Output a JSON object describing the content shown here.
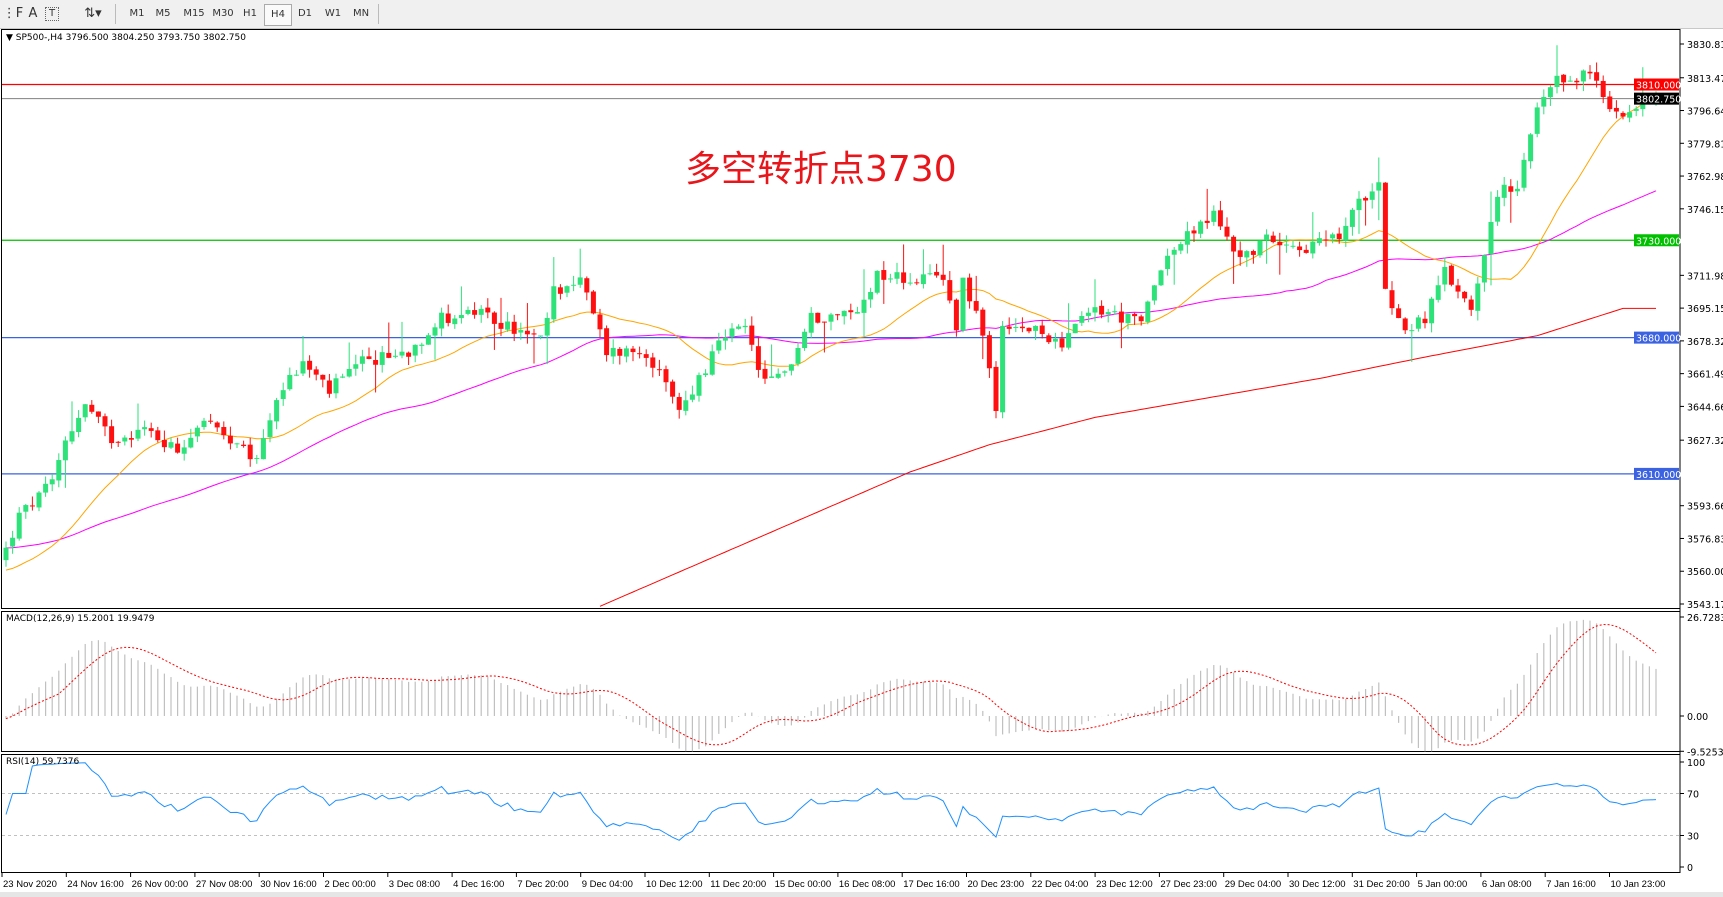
{
  "toolbar": {
    "tools": [
      {
        "name": "fibonacci-icon",
        "glyph": "⋮F"
      },
      {
        "name": "text-icon",
        "glyph": "A"
      },
      {
        "name": "text-label-icon",
        "glyph": "T"
      },
      {
        "name": "arrows-icon",
        "glyph": "⇅▾"
      }
    ],
    "timeframes": [
      "M1",
      "M5",
      "M15",
      "M30",
      "H1",
      "H4",
      "D1",
      "W1",
      "MN"
    ],
    "selected_timeframe": "H4"
  },
  "main_chart": {
    "header": "SP500-,H4  3796.500 3804.250 3793.750 3802.750",
    "annotation": "多空转折点3730",
    "price_axis": [
      "3830.810",
      "3813.470",
      "3796.640",
      "3779.810",
      "3762.980",
      "3746.150",
      "3711.980",
      "3695.150",
      "3678.320",
      "3661.490",
      "3644.660",
      "3627.320",
      "3593.660",
      "3576.830",
      "3560.000",
      "3543.170"
    ],
    "price_axis_values": [
      3830.81,
      3813.47,
      3796.64,
      3779.81,
      3762.98,
      3746.15,
      3711.98,
      3695.15,
      3678.32,
      3661.49,
      3644.66,
      3627.32,
      3593.66,
      3576.83,
      3560.0,
      3543.17
    ],
    "price_range": [
      3543.17,
      3830.81
    ],
    "levels": [
      {
        "label": "3810.000",
        "value": 3810.0,
        "color": "#ff0000"
      },
      {
        "label": "3802.750",
        "value": 3802.75,
        "color": "#808080",
        "current": true
      },
      {
        "label": "3730.000",
        "value": 3730.0,
        "color": "#00c000"
      },
      {
        "label": "3680.000",
        "value": 3680.0,
        "color": "#3b62e0"
      },
      {
        "label": "3610.000",
        "value": 3610.0,
        "color": "#3b62e0"
      }
    ],
    "colors": {
      "bull": "#2ee27a",
      "bear": "#ff1010",
      "ma_fast": "#ffa500",
      "ma_mid": "#ff00ff",
      "ma_slow": "#ff0000"
    },
    "close_path": [
      [
        0,
        3571
      ],
      [
        2,
        3588
      ],
      [
        7,
        3605
      ],
      [
        9,
        3628
      ],
      [
        12,
        3645
      ],
      [
        16,
        3628
      ],
      [
        21,
        3633
      ],
      [
        26,
        3622
      ],
      [
        30,
        3639
      ],
      [
        34,
        3625
      ],
      [
        38,
        3617
      ],
      [
        41,
        3650
      ],
      [
        45,
        3667
      ],
      [
        49,
        3653
      ],
      [
        54,
        3667
      ],
      [
        61,
        3673
      ],
      [
        66,
        3690
      ],
      [
        71,
        3693
      ],
      [
        77,
        3684
      ],
      [
        81,
        3678
      ],
      [
        83,
        3704
      ],
      [
        87,
        3710
      ],
      [
        91,
        3673
      ],
      [
        97,
        3673
      ],
      [
        102,
        3642
      ],
      [
        105,
        3659
      ],
      [
        109,
        3681
      ],
      [
        112,
        3684
      ],
      [
        115,
        3656
      ],
      [
        119,
        3667
      ],
      [
        122,
        3690
      ],
      [
        129,
        3693
      ],
      [
        132,
        3713
      ],
      [
        137,
        3710
      ],
      [
        142,
        3710
      ],
      [
        144,
        3687
      ],
      [
        145,
        3710
      ],
      [
        148,
        3684
      ],
      [
        150,
        3639
      ],
      [
        151,
        3684
      ],
      [
        155,
        3684
      ],
      [
        160,
        3678
      ],
      [
        165,
        3695
      ],
      [
        172,
        3687
      ],
      [
        175,
        3718
      ],
      [
        180,
        3735
      ],
      [
        183,
        3743
      ],
      [
        187,
        3721
      ],
      [
        192,
        3732
      ],
      [
        197,
        3726
      ],
      [
        202,
        3732
      ],
      [
        205,
        3749
      ],
      [
        208,
        3763
      ],
      [
        209,
        3704
      ],
      [
        212,
        3684
      ],
      [
        215,
        3690
      ],
      [
        218,
        3713
      ],
      [
        222,
        3695
      ],
      [
        226,
        3755
      ],
      [
        229,
        3755
      ],
      [
        232,
        3797
      ],
      [
        235,
        3811
      ],
      [
        240,
        3816
      ],
      [
        243,
        3797
      ],
      [
        246,
        3797
      ],
      [
        250,
        3802.75
      ]
    ],
    "slow_ma_path": [
      [
        90,
        3542
      ],
      [
        137,
        3611
      ],
      [
        149,
        3625
      ],
      [
        165,
        3639
      ],
      [
        199,
        3659
      ],
      [
        215,
        3670
      ],
      [
        232,
        3681
      ],
      [
        245,
        3695
      ]
    ]
  },
  "macd": {
    "label": "MACD(12,26,9) 15.2001 19.9479",
    "axis": [
      "26.7283",
      "0.00",
      "-9.5253"
    ],
    "range": [
      -9.5253,
      26.7283
    ]
  },
  "rsi": {
    "label": "RSI(14) 59.7376",
    "axis": [
      "100",
      "70",
      "30",
      "0"
    ],
    "levels": [
      70,
      30
    ],
    "color": "#1e90ff"
  },
  "time_axis": [
    "23 Nov 2020",
    "24 Nov 16:00",
    "26 Nov 00:00",
    "27 Nov 08:00",
    "30 Nov 16:00",
    "2 Dec 00:00",
    "3 Dec 08:00",
    "4 Dec 16:00",
    "7 Dec 20:00",
    "9 Dec 04:00",
    "10 Dec 12:00",
    "11 Dec 20:00",
    "15 Dec 00:00",
    "16 Dec 08:00",
    "17 Dec 16:00",
    "20 Dec 23:00",
    "22 Dec 04:00",
    "23 Dec 12:00",
    "27 Dec 23:00",
    "29 Dec 04:00",
    "30 Dec 12:00",
    "31 Dec 20:00",
    "5 Jan 00:00",
    "6 Jan 08:00",
    "7 Jan 16:00",
    "10 Jan 23:00"
  ]
}
